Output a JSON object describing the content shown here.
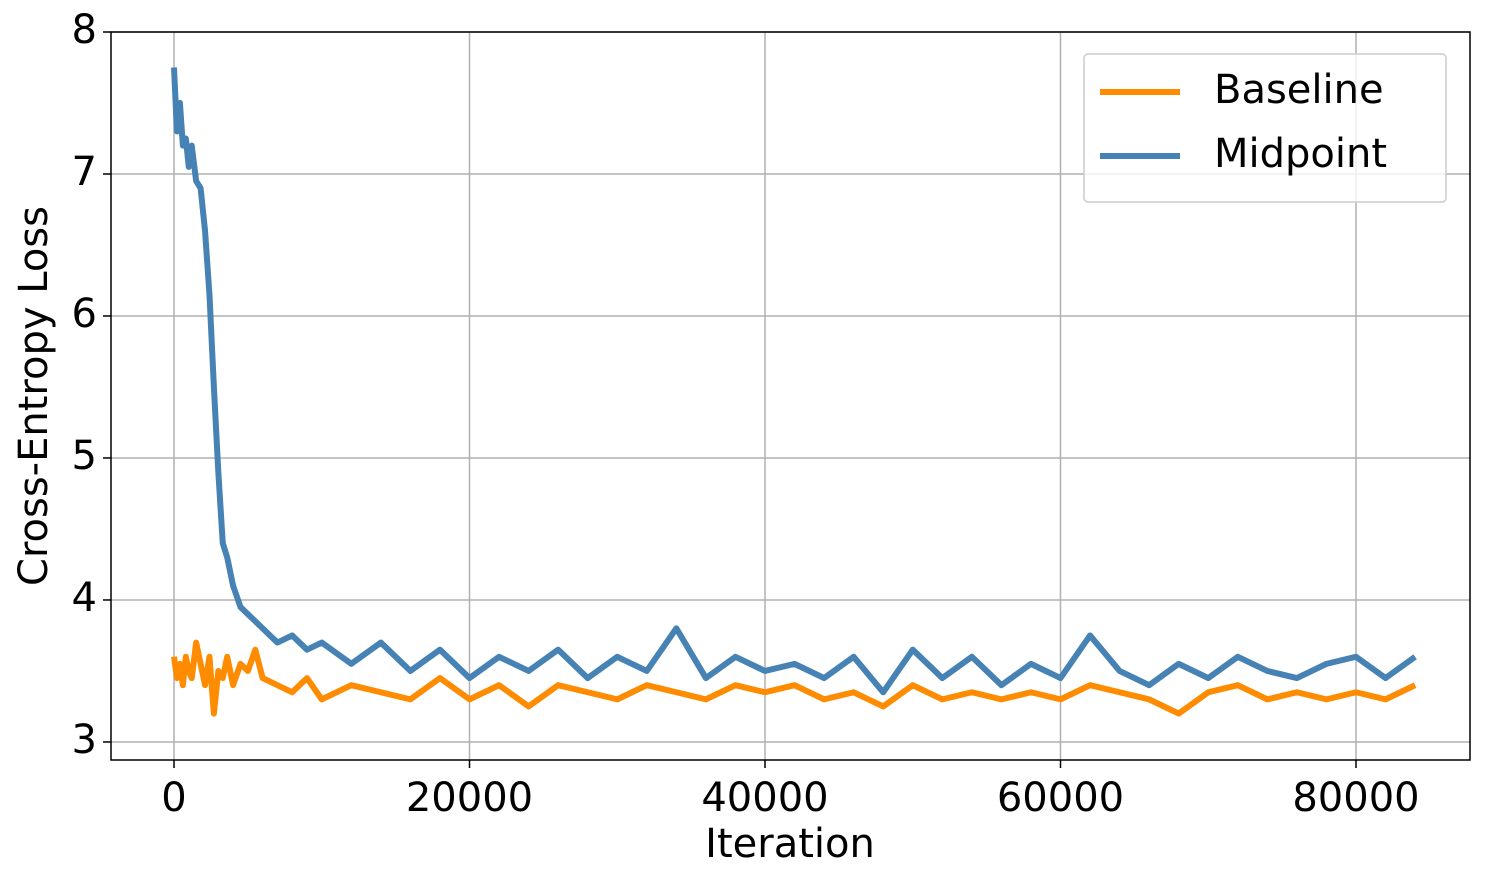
{
  "chart_data": {
    "type": "line",
    "x_label": "Iteration",
    "y_label": "Cross-Entropy Loss",
    "x": [
      0,
      200,
      400,
      600,
      800,
      1000,
      1200,
      1500,
      1800,
      2100,
      2400,
      2700,
      3000,
      3300,
      3600,
      4000,
      4500,
      5000,
      5500,
      6000,
      7000,
      8000,
      9000,
      10000,
      12000,
      14000,
      16000,
      18000,
      20000,
      22000,
      24000,
      26000,
      28000,
      30000,
      32000,
      34000,
      36000,
      38000,
      40000,
      42000,
      44000,
      46000,
      48000,
      50000,
      52000,
      54000,
      56000,
      58000,
      60000,
      62000,
      64000,
      66000,
      68000,
      70000,
      72000,
      74000,
      76000,
      78000,
      80000,
      82000,
      84000
    ],
    "series": [
      {
        "name": "Baseline",
        "color": "#ff8c00",
        "values": [
          3.6,
          3.45,
          3.55,
          3.4,
          3.6,
          3.5,
          3.45,
          3.7,
          3.55,
          3.4,
          3.6,
          3.2,
          3.5,
          3.45,
          3.6,
          3.4,
          3.55,
          3.5,
          3.65,
          3.45,
          3.4,
          3.35,
          3.45,
          3.3,
          3.4,
          3.35,
          3.3,
          3.45,
          3.3,
          3.4,
          3.25,
          3.4,
          3.35,
          3.3,
          3.4,
          3.35,
          3.3,
          3.4,
          3.35,
          3.4,
          3.3,
          3.35,
          3.25,
          3.4,
          3.3,
          3.35,
          3.3,
          3.35,
          3.3,
          3.4,
          3.35,
          3.3,
          3.2,
          3.35,
          3.4,
          3.3,
          3.35,
          3.3,
          3.35,
          3.3,
          3.4
        ]
      },
      {
        "name": "Midpoint",
        "color": "#4682b4",
        "values": [
          7.75,
          7.3,
          7.5,
          7.2,
          7.25,
          7.05,
          7.2,
          6.95,
          6.9,
          6.6,
          6.15,
          5.5,
          4.9,
          4.4,
          4.3,
          4.1,
          3.95,
          3.9,
          3.85,
          3.8,
          3.7,
          3.75,
          3.65,
          3.7,
          3.55,
          3.7,
          3.5,
          3.65,
          3.45,
          3.6,
          3.5,
          3.65,
          3.45,
          3.6,
          3.5,
          3.8,
          3.45,
          3.6,
          3.5,
          3.55,
          3.45,
          3.6,
          3.35,
          3.65,
          3.45,
          3.6,
          3.4,
          3.55,
          3.45,
          3.75,
          3.5,
          3.4,
          3.55,
          3.45,
          3.6,
          3.5,
          3.45,
          3.55,
          3.6,
          3.45,
          3.6
        ]
      }
    ],
    "xlim": [
      -4264,
      87716
    ],
    "ylim": [
      2.873,
      8.0
    ],
    "xticks": [
      0,
      20000,
      40000,
      60000,
      80000
    ],
    "yticks": [
      3,
      4,
      5,
      6,
      7,
      8
    ],
    "grid": true,
    "legend": "upper right"
  }
}
